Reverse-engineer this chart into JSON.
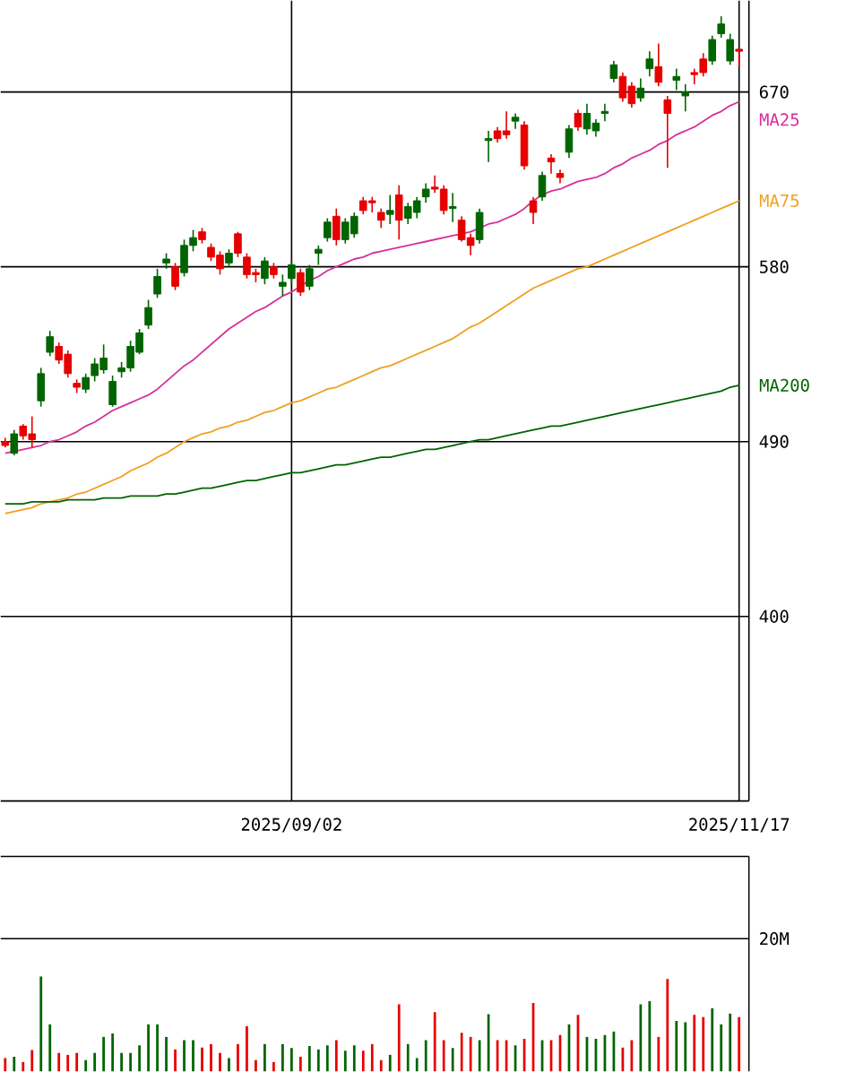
{
  "chart_data": [
    {
      "type": "candlestick",
      "categories": [
        null,
        null,
        null,
        null,
        null,
        null,
        null,
        null,
        null,
        null,
        null,
        null,
        null,
        null,
        null,
        null,
        null,
        null,
        null,
        null,
        null,
        null,
        null,
        null,
        null,
        null,
        null,
        null,
        null,
        null,
        null,
        null,
        "2025/09/02",
        null,
        null,
        null,
        null,
        null,
        null,
        null,
        null,
        null,
        null,
        null,
        null,
        null,
        null,
        null,
        null,
        null,
        null,
        null,
        null,
        null,
        null,
        null,
        null,
        null,
        null,
        null,
        null,
        null,
        null,
        null,
        null,
        null,
        null,
        null,
        null,
        null,
        null,
        null,
        null,
        null,
        null,
        null,
        null,
        null,
        null,
        null,
        null,
        null,
        "2025/11/17"
      ],
      "ohlc": [
        [
          490,
          492,
          487,
          488
        ],
        [
          484,
          496,
          483,
          494
        ],
        [
          498,
          499,
          491,
          493
        ],
        [
          494,
          503,
          487,
          491
        ],
        [
          511,
          528,
          508,
          525
        ],
        [
          536,
          547,
          534,
          544
        ],
        [
          539,
          541,
          530,
          532
        ],
        [
          535,
          537,
          523,
          525
        ],
        [
          520,
          522,
          515,
          518
        ],
        [
          517,
          525,
          515,
          523
        ],
        [
          524,
          533,
          521,
          530
        ],
        [
          527,
          540,
          525,
          533
        ],
        [
          509,
          524,
          508,
          521
        ],
        [
          526,
          531,
          523,
          528
        ],
        [
          528,
          542,
          526,
          539
        ],
        [
          536,
          548,
          535,
          546
        ],
        [
          550,
          563,
          548,
          559
        ],
        [
          566,
          579,
          564,
          575
        ],
        [
          582,
          587,
          579,
          584
        ],
        [
          580,
          582,
          568,
          570
        ],
        [
          577,
          594,
          575,
          591
        ],
        [
          591,
          599,
          588,
          595
        ],
        [
          598,
          600,
          592,
          594
        ],
        [
          590,
          592,
          583,
          585
        ],
        [
          586,
          588,
          576,
          579
        ],
        [
          582,
          589,
          580,
          587
        ],
        [
          597,
          598,
          585,
          587
        ],
        [
          585,
          587,
          574,
          576
        ],
        [
          577,
          579,
          572,
          576
        ],
        [
          574,
          585,
          571,
          583
        ],
        [
          580,
          582,
          574,
          576
        ],
        [
          570,
          576,
          565,
          572
        ],
        [
          574,
          583,
          571,
          581
        ],
        [
          577,
          579,
          565,
          567
        ],
        [
          570,
          581,
          568,
          579
        ],
        [
          587,
          591,
          581,
          589
        ],
        [
          595,
          605,
          593,
          603
        ],
        [
          606,
          610,
          591,
          594
        ],
        [
          594,
          605,
          592,
          603
        ],
        [
          597,
          608,
          595,
          606
        ],
        [
          614,
          616,
          607,
          609
        ],
        [
          614,
          616,
          608,
          613
        ],
        [
          608,
          610,
          600,
          604
        ],
        [
          607,
          617,
          602,
          609
        ],
        [
          617,
          622,
          594,
          604
        ],
        [
          605,
          613,
          602,
          611
        ],
        [
          608,
          616,
          605,
          614
        ],
        [
          616,
          623,
          613,
          620
        ],
        [
          621,
          627,
          618,
          620
        ],
        [
          620,
          622,
          607,
          609
        ],
        [
          610,
          618,
          603,
          611
        ],
        [
          604,
          606,
          593,
          594
        ],
        [
          595,
          597,
          586,
          591
        ],
        [
          594,
          610,
          592,
          608
        ],
        [
          645,
          650,
          634,
          646
        ],
        [
          650,
          652,
          644,
          646
        ],
        [
          650,
          660,
          646,
          648
        ],
        [
          655,
          659,
          651,
          657
        ],
        [
          653,
          655,
          630,
          632
        ],
        [
          614,
          616,
          602,
          608
        ],
        [
          616,
          629,
          614,
          627
        ],
        [
          636,
          638,
          628,
          634
        ],
        [
          628,
          630,
          623,
          626
        ],
        [
          639,
          653,
          636,
          651
        ],
        [
          659,
          661,
          650,
          652
        ],
        [
          651,
          664,
          648,
          659
        ],
        [
          650,
          656,
          647,
          654
        ],
        [
          659,
          664,
          655,
          660
        ],
        [
          677,
          686,
          675,
          684
        ],
        [
          678,
          680,
          665,
          667
        ],
        [
          673,
          675,
          662,
          664
        ],
        [
          667,
          677,
          665,
          672
        ],
        [
          682,
          691,
          678,
          687
        ],
        [
          683,
          695,
          673,
          675
        ],
        [
          666,
          668,
          631,
          659
        ],
        [
          676,
          682,
          671,
          678
        ],
        [
          668,
          674,
          660,
          670
        ],
        [
          680,
          682,
          674,
          679
        ],
        [
          687,
          690,
          678,
          680
        ],
        [
          686,
          699,
          684,
          697
        ],
        [
          700,
          709,
          698,
          705
        ],
        [
          686,
          700,
          684,
          697
        ],
        [
          692,
          692,
          683,
          691
        ]
      ],
      "colors": [
        "#e60000",
        "#006400",
        "#e60000",
        "#e60000",
        "#006400",
        "#006400",
        "#e60000",
        "#e60000",
        "#e60000",
        "#006400",
        "#006400",
        "#006400",
        "#006400",
        "#006400",
        "#006400",
        "#006400",
        "#006400",
        "#006400",
        "#006400",
        "#e60000",
        "#006400",
        "#006400",
        "#e60000",
        "#e60000",
        "#e60000",
        "#006400",
        "#e60000",
        "#e60000",
        "#e60000",
        "#006400",
        "#e60000",
        "#006400",
        "#006400",
        "#e60000",
        "#006400",
        "#006400",
        "#006400",
        "#e60000",
        "#006400",
        "#006400",
        "#e60000",
        "#e60000",
        "#e60000",
        "#006400",
        "#e60000",
        "#006400",
        "#006400",
        "#006400",
        "#e60000",
        "#e60000",
        "#006400",
        "#e60000",
        "#e60000",
        "#006400",
        "#006400",
        "#e60000",
        "#e60000",
        "#006400",
        "#e60000",
        "#e60000",
        "#006400",
        "#e60000",
        "#e60000",
        "#006400",
        "#e60000",
        "#006400",
        "#006400",
        "#006400",
        "#006400",
        "#e60000",
        "#e60000",
        "#006400",
        "#006400",
        "#e60000",
        "#e60000",
        "#006400",
        "#006400",
        "#e60000",
        "#e60000",
        "#006400",
        "#006400",
        "#006400",
        "#e60000"
      ],
      "series": [
        {
          "type": "line",
          "name": "MA25",
          "color": "#d6309a",
          "values": [
            484,
            485,
            486,
            487,
            488,
            490,
            491,
            493,
            495,
            498,
            500,
            503,
            506,
            508,
            510,
            512,
            514,
            517,
            521,
            525,
            529,
            532,
            536,
            540,
            544,
            548,
            551,
            554,
            557,
            559,
            562,
            565,
            567,
            570,
            573,
            575,
            578,
            580,
            582,
            584,
            585,
            587,
            588,
            589,
            590,
            591,
            592,
            593,
            594,
            595,
            596,
            597,
            598,
            600,
            602,
            603,
            605,
            607,
            610,
            614,
            617,
            619,
            620,
            622,
            624,
            625,
            626,
            628,
            631,
            633,
            636,
            638,
            640,
            643,
            645,
            648,
            650,
            652,
            655,
            658,
            660,
            663,
            665
          ]
        },
        {
          "type": "line",
          "name": "MA75",
          "color": "#f0a020",
          "values": [
            453,
            454,
            455,
            456,
            458,
            459,
            460,
            461,
            463,
            464,
            466,
            468,
            470,
            472,
            475,
            477,
            479,
            482,
            484,
            487,
            490,
            492,
            494,
            495,
            497,
            498,
            500,
            501,
            503,
            505,
            506,
            508,
            510,
            511,
            513,
            515,
            517,
            518,
            520,
            522,
            524,
            526,
            528,
            529,
            531,
            533,
            535,
            537,
            539,
            541,
            543,
            546,
            549,
            551,
            554,
            557,
            560,
            563,
            566,
            569,
            571,
            573,
            575,
            577,
            579,
            580,
            582,
            584,
            586,
            588,
            590,
            592,
            594,
            596,
            598,
            600,
            602,
            604,
            606,
            608,
            610,
            612,
            614
          ]
        },
        {
          "type": "line",
          "name": "MA200",
          "color": "#006400",
          "values": [
            458,
            458,
            458,
            459,
            459,
            459,
            459,
            460,
            460,
            460,
            460,
            461,
            461,
            461,
            462,
            462,
            462,
            462,
            463,
            463,
            464,
            465,
            466,
            466,
            467,
            468,
            469,
            470,
            470,
            471,
            472,
            473,
            474,
            474,
            475,
            476,
            477,
            478,
            478,
            479,
            480,
            481,
            482,
            482,
            483,
            484,
            485,
            486,
            486,
            487,
            488,
            489,
            490,
            491,
            491,
            492,
            493,
            494,
            495,
            496,
            497,
            498,
            498,
            499,
            500,
            501,
            502,
            503,
            504,
            505,
            506,
            507,
            508,
            509,
            510,
            511,
            512,
            513,
            514,
            515,
            516,
            518,
            519
          ]
        }
      ],
      "ylim": [
        305,
        717
      ],
      "yticks": [
        400,
        490,
        580,
        670
      ],
      "grid": true
    },
    {
      "type": "bar",
      "categories": [
        null,
        null,
        null,
        null,
        null,
        null,
        null,
        null,
        null,
        null,
        null,
        null,
        null,
        null,
        null,
        null,
        null,
        null,
        null,
        null,
        null,
        null,
        null,
        null,
        null,
        null,
        null,
        null,
        null,
        null,
        null,
        null,
        "2025/09/02",
        null,
        null,
        null,
        null,
        null,
        null,
        null,
        null,
        null,
        null,
        null,
        null,
        null,
        null,
        null,
        null,
        null,
        null,
        null,
        null,
        null,
        null,
        null,
        null,
        null,
        null,
        null,
        null,
        null,
        null,
        null,
        null,
        null,
        null,
        null,
        null,
        null,
        null,
        null,
        null,
        null,
        null,
        null,
        null,
        null,
        null,
        null,
        null,
        null,
        "2025/11/17"
      ],
      "values": [
        2.0,
        2.2,
        1.4,
        3.2,
        14.3,
        7.1,
        2.8,
        2.5,
        2.8,
        1.7,
        2.8,
        5.2,
        5.7,
        2.8,
        2.8,
        3.9,
        7.1,
        7.1,
        5.2,
        3.3,
        4.7,
        4.7,
        3.6,
        4.1,
        2.8,
        2.0,
        4.1,
        6.8,
        1.7,
        4.1,
        1.4,
        4.1,
        3.5,
        2.2,
        3.8,
        3.3,
        3.9,
        4.7,
        3.1,
        3.9,
        3.1,
        4.1,
        1.7,
        2.5,
        10.1,
        4.1,
        2.0,
        4.7,
        8.9,
        4.7,
        3.5,
        5.8,
        5.2,
        4.7,
        8.6,
        4.7,
        4.7,
        3.9,
        4.9,
        10.3,
        4.7,
        4.7,
        5.5,
        7.1,
        8.5,
        5.2,
        4.9,
        5.5,
        6.0,
        3.6,
        4.7,
        10.1,
        10.6,
        5.2,
        13.9,
        7.6,
        7.4,
        8.5,
        8.2,
        9.5,
        7.1,
        8.7,
        8.2
      ],
      "colors": [
        "#e60000",
        "#006400",
        "#e60000",
        "#e60000",
        "#006400",
        "#006400",
        "#e60000",
        "#e60000",
        "#e60000",
        "#006400",
        "#006400",
        "#006400",
        "#006400",
        "#006400",
        "#006400",
        "#006400",
        "#006400",
        "#006400",
        "#006400",
        "#e60000",
        "#006400",
        "#006400",
        "#e60000",
        "#e60000",
        "#e60000",
        "#006400",
        "#e60000",
        "#e60000",
        "#e60000",
        "#006400",
        "#e60000",
        "#006400",
        "#006400",
        "#e60000",
        "#006400",
        "#006400",
        "#006400",
        "#e60000",
        "#006400",
        "#006400",
        "#e60000",
        "#e60000",
        "#e60000",
        "#006400",
        "#e60000",
        "#006400",
        "#006400",
        "#006400",
        "#e60000",
        "#e60000",
        "#006400",
        "#e60000",
        "#e60000",
        "#006400",
        "#006400",
        "#e60000",
        "#e60000",
        "#006400",
        "#e60000",
        "#e60000",
        "#006400",
        "#e60000",
        "#e60000",
        "#006400",
        "#e60000",
        "#006400",
        "#006400",
        "#006400",
        "#006400",
        "#e60000",
        "#e60000",
        "#006400",
        "#006400",
        "#e60000",
        "#e60000",
        "#006400",
        "#006400",
        "#e60000",
        "#e60000",
        "#006400",
        "#006400",
        "#006400",
        "#e60000"
      ],
      "ylim": [
        0,
        32.4
      ],
      "yticks": [
        {
          "value": 20,
          "label": "20M"
        }
      ],
      "grid": "y",
      "tick_labels": "y"
    }
  ]
}
